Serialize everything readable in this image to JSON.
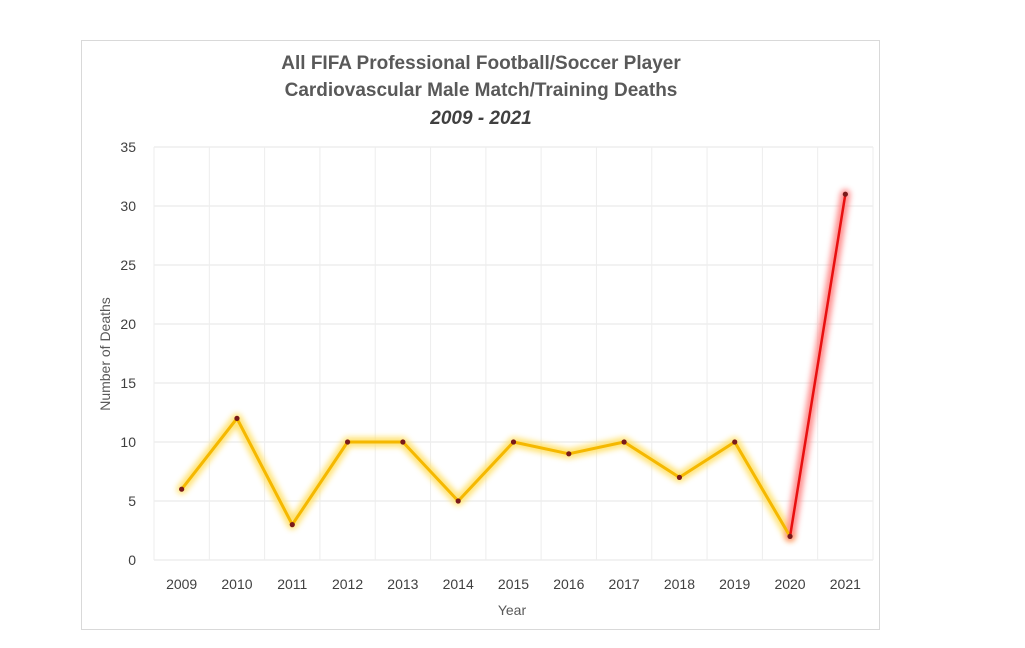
{
  "chart_data": {
    "type": "line",
    "title": [
      "All FIFA Professional Football/Soccer Player",
      "Cardiovascular Male Match/Training Deaths"
    ],
    "subtitle": "2009 - 2021",
    "xlabel": "Year",
    "ylabel": "Number of Deaths",
    "categories": [
      "2009",
      "2010",
      "2011",
      "2012",
      "2013",
      "2014",
      "2015",
      "2016",
      "2017",
      "2018",
      "2019",
      "2020",
      "2021"
    ],
    "values": [
      6,
      12,
      3,
      10,
      10,
      5,
      10,
      9,
      10,
      7,
      10,
      2,
      31
    ],
    "ylim": [
      0,
      35
    ],
    "yticks": [
      "0",
      "5",
      "10",
      "15",
      "20",
      "25",
      "30",
      "35"
    ],
    "grid": true,
    "colors": {
      "line": "#f5b800",
      "glow": "#ffe066",
      "highlight": "#e81010",
      "highlight_glow": "#ff8080",
      "marker": "#7a1a1a"
    }
  }
}
